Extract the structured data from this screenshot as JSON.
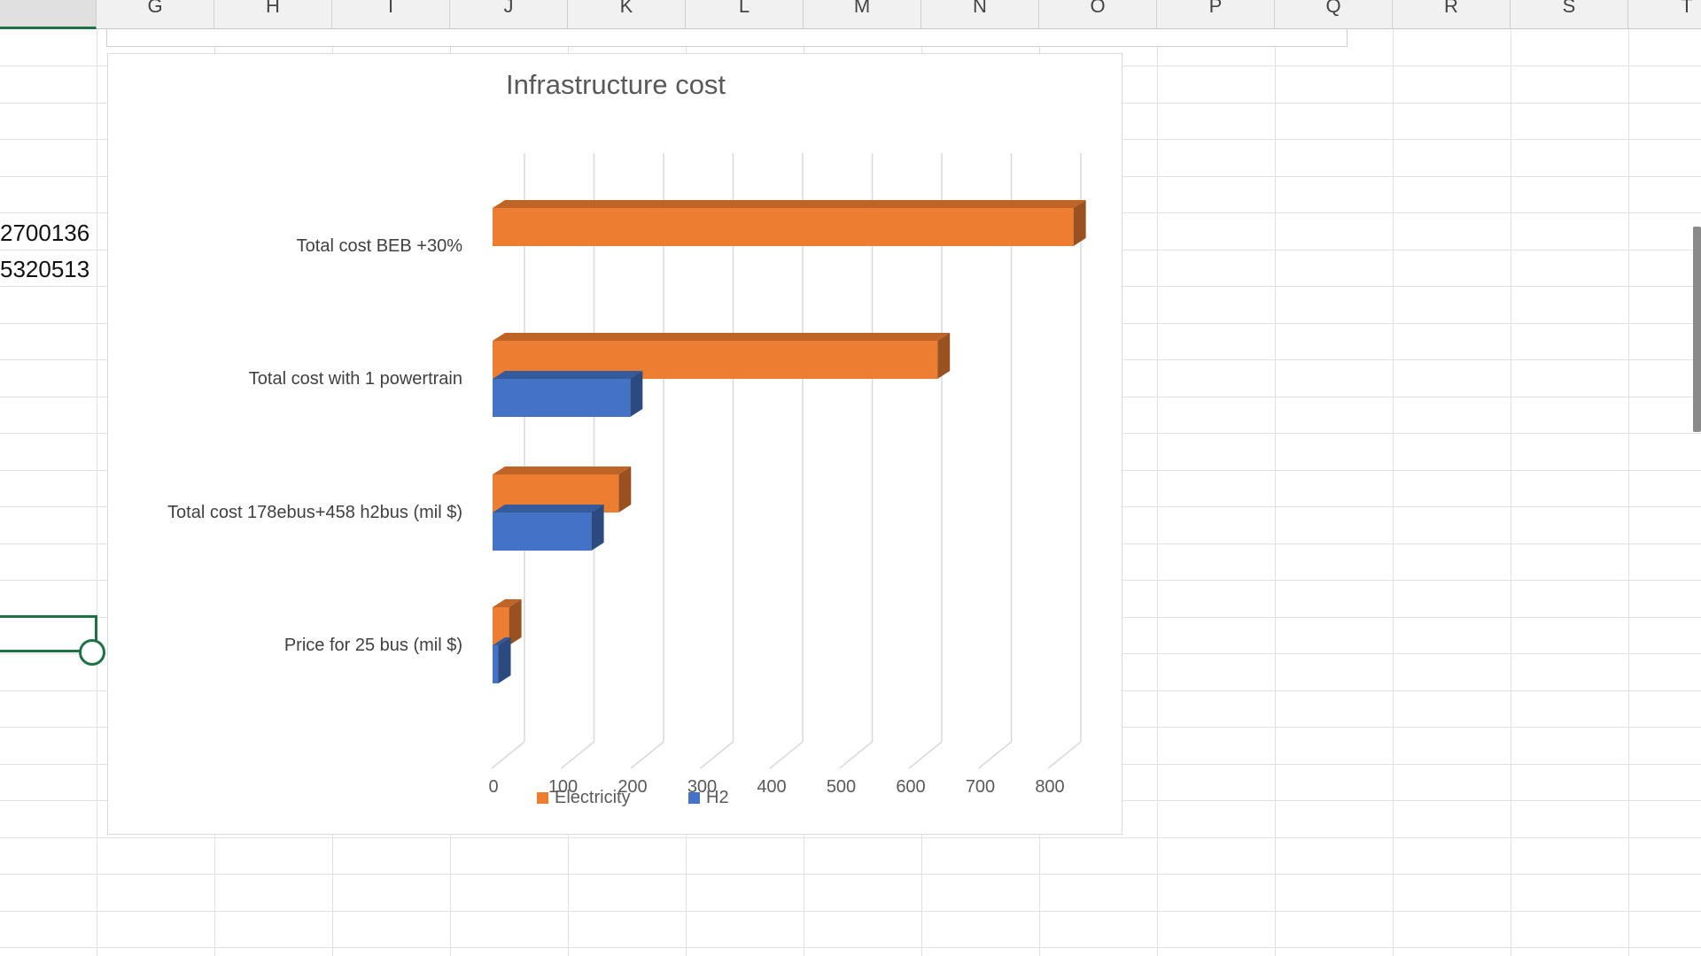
{
  "sheet": {
    "columns": [
      "G",
      "H",
      "I",
      "J",
      "K",
      "L",
      "M",
      "N",
      "O",
      "P",
      "Q",
      "R",
      "S",
      "T"
    ],
    "cells": [
      "2700136",
      "5320513"
    ]
  },
  "chart_data": {
    "type": "bar",
    "orientation": "horizontal",
    "style": "3d-clustered",
    "title": "Infrastructure cost",
    "categories": [
      "Price for 25 bus (mil $)",
      "Total cost 178ebus+458 h2bus (mil $)",
      "Total cost with 1 powertrain",
      "Total cost BEB +30%"
    ],
    "series": [
      {
        "name": "Electricity",
        "color": "#ed7d31",
        "values": [
          20,
          153,
          540,
          705
        ]
      },
      {
        "name": "H2",
        "color": "#4472c4",
        "values": [
          7,
          120,
          167,
          null
        ]
      }
    ],
    "xlim": [
      0,
      800
    ],
    "xticks": [
      0,
      100,
      200,
      300,
      400,
      500,
      600,
      700,
      800
    ],
    "grid": true,
    "legend": "bottom"
  }
}
